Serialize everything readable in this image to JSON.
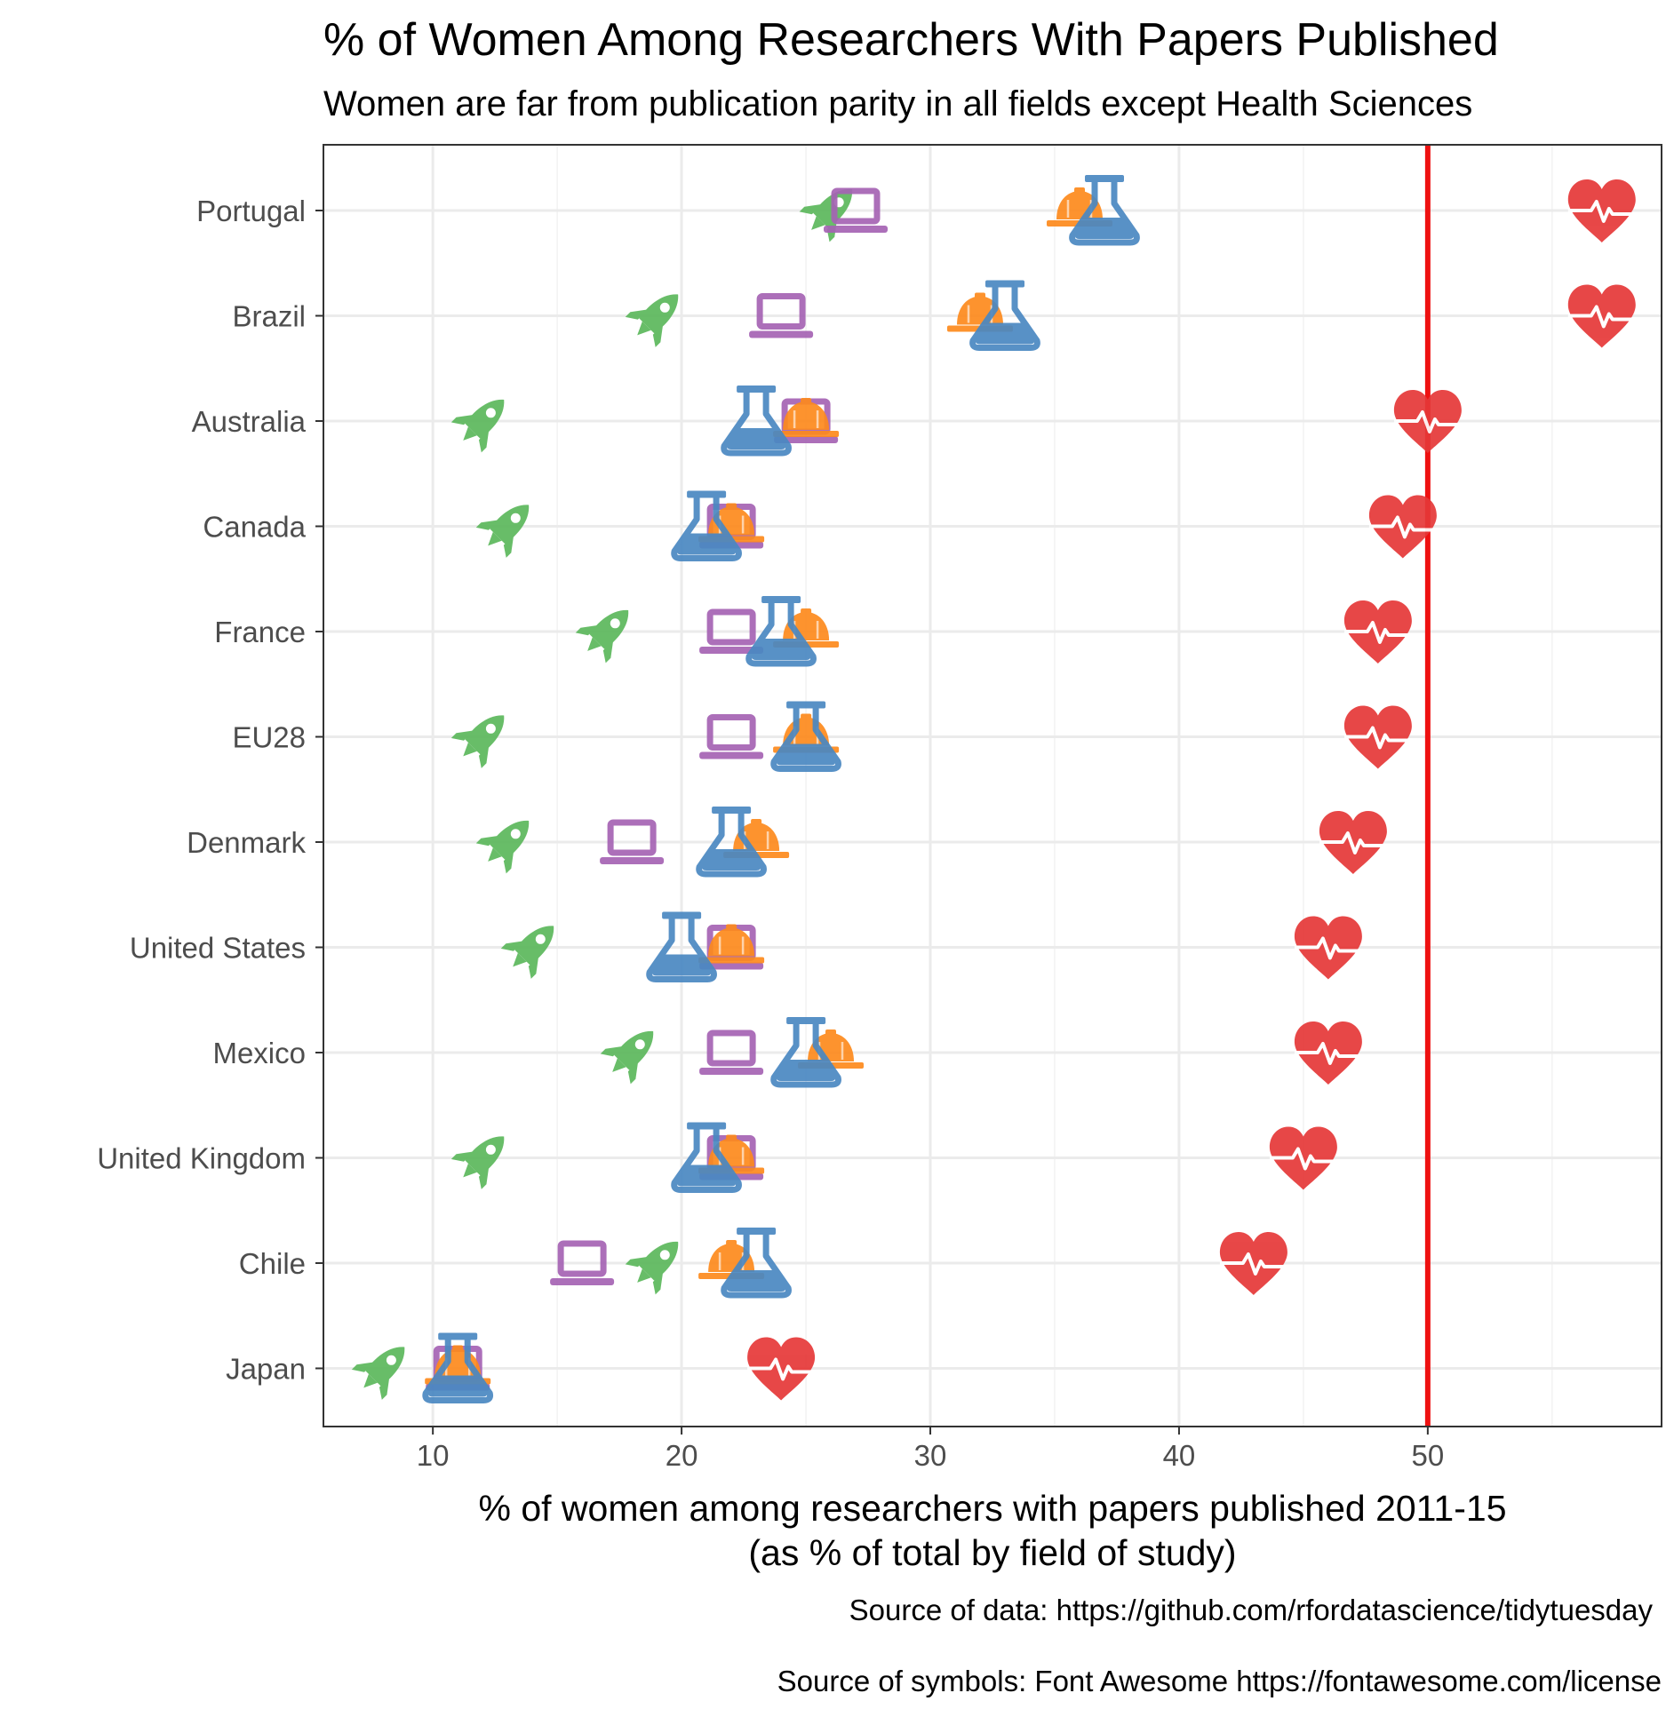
{
  "chart_data": {
    "type": "scatter",
    "title": "% of Women Among Researchers With Papers Published",
    "subtitle": "Women are far from publication parity in all fields except Health Sciences",
    "xlabel_lines": [
      "% of women among researchers with papers published 2011-15",
      "(as % of total by field of study)"
    ],
    "captions": [
      "Source of data: https://github.com/rfordatascience/tidytuesday",
      "Source of symbols: Font Awesome https://fontawesome.com/license"
    ],
    "xlim": [
      5.6,
      59.4
    ],
    "xticks": [
      10,
      20,
      30,
      40,
      50
    ],
    "reference_line": {
      "x": 50,
      "color": "#ee1111"
    },
    "grid": true,
    "categories": [
      "Portugal",
      "Brazil",
      "Australia",
      "Canada",
      "France",
      "EU28",
      "Denmark",
      "United States",
      "Mexico",
      "United Kingdom",
      "Chile",
      "Japan"
    ],
    "series": [
      {
        "icon": "rocket-icon",
        "color": "#5cb85c",
        "values": [
          26.0,
          19.0,
          12.0,
          13.0,
          17.0,
          12.0,
          13.0,
          14.0,
          18.0,
          12.0,
          19.0,
          8.0
        ]
      },
      {
        "icon": "laptop-icon",
        "color": "#a563b4",
        "values": [
          27.0,
          24.0,
          25.0,
          22.0,
          22.0,
          22.0,
          18.0,
          22.0,
          22.0,
          22.0,
          16.0,
          11.0
        ]
      },
      {
        "icon": "hard-hat-icon",
        "color": "#fd8a1d",
        "values": [
          36.0,
          32.0,
          25.0,
          22.0,
          25.0,
          25.0,
          23.0,
          22.0,
          26.0,
          22.0,
          22.0,
          11.0
        ]
      },
      {
        "icon": "flask-icon",
        "color": "#4a88c2",
        "values": [
          37.0,
          33.0,
          23.0,
          21.0,
          24.0,
          25.0,
          22.0,
          20.0,
          25.0,
          21.0,
          23.0,
          11.0
        ]
      },
      {
        "icon": "heartbeat-icon",
        "color": "#e63838",
        "values": [
          57.0,
          57.0,
          50.0,
          49.0,
          48.0,
          48.0,
          47.0,
          46.0,
          46.0,
          45.0,
          43.0,
          24.0
        ]
      }
    ]
  }
}
